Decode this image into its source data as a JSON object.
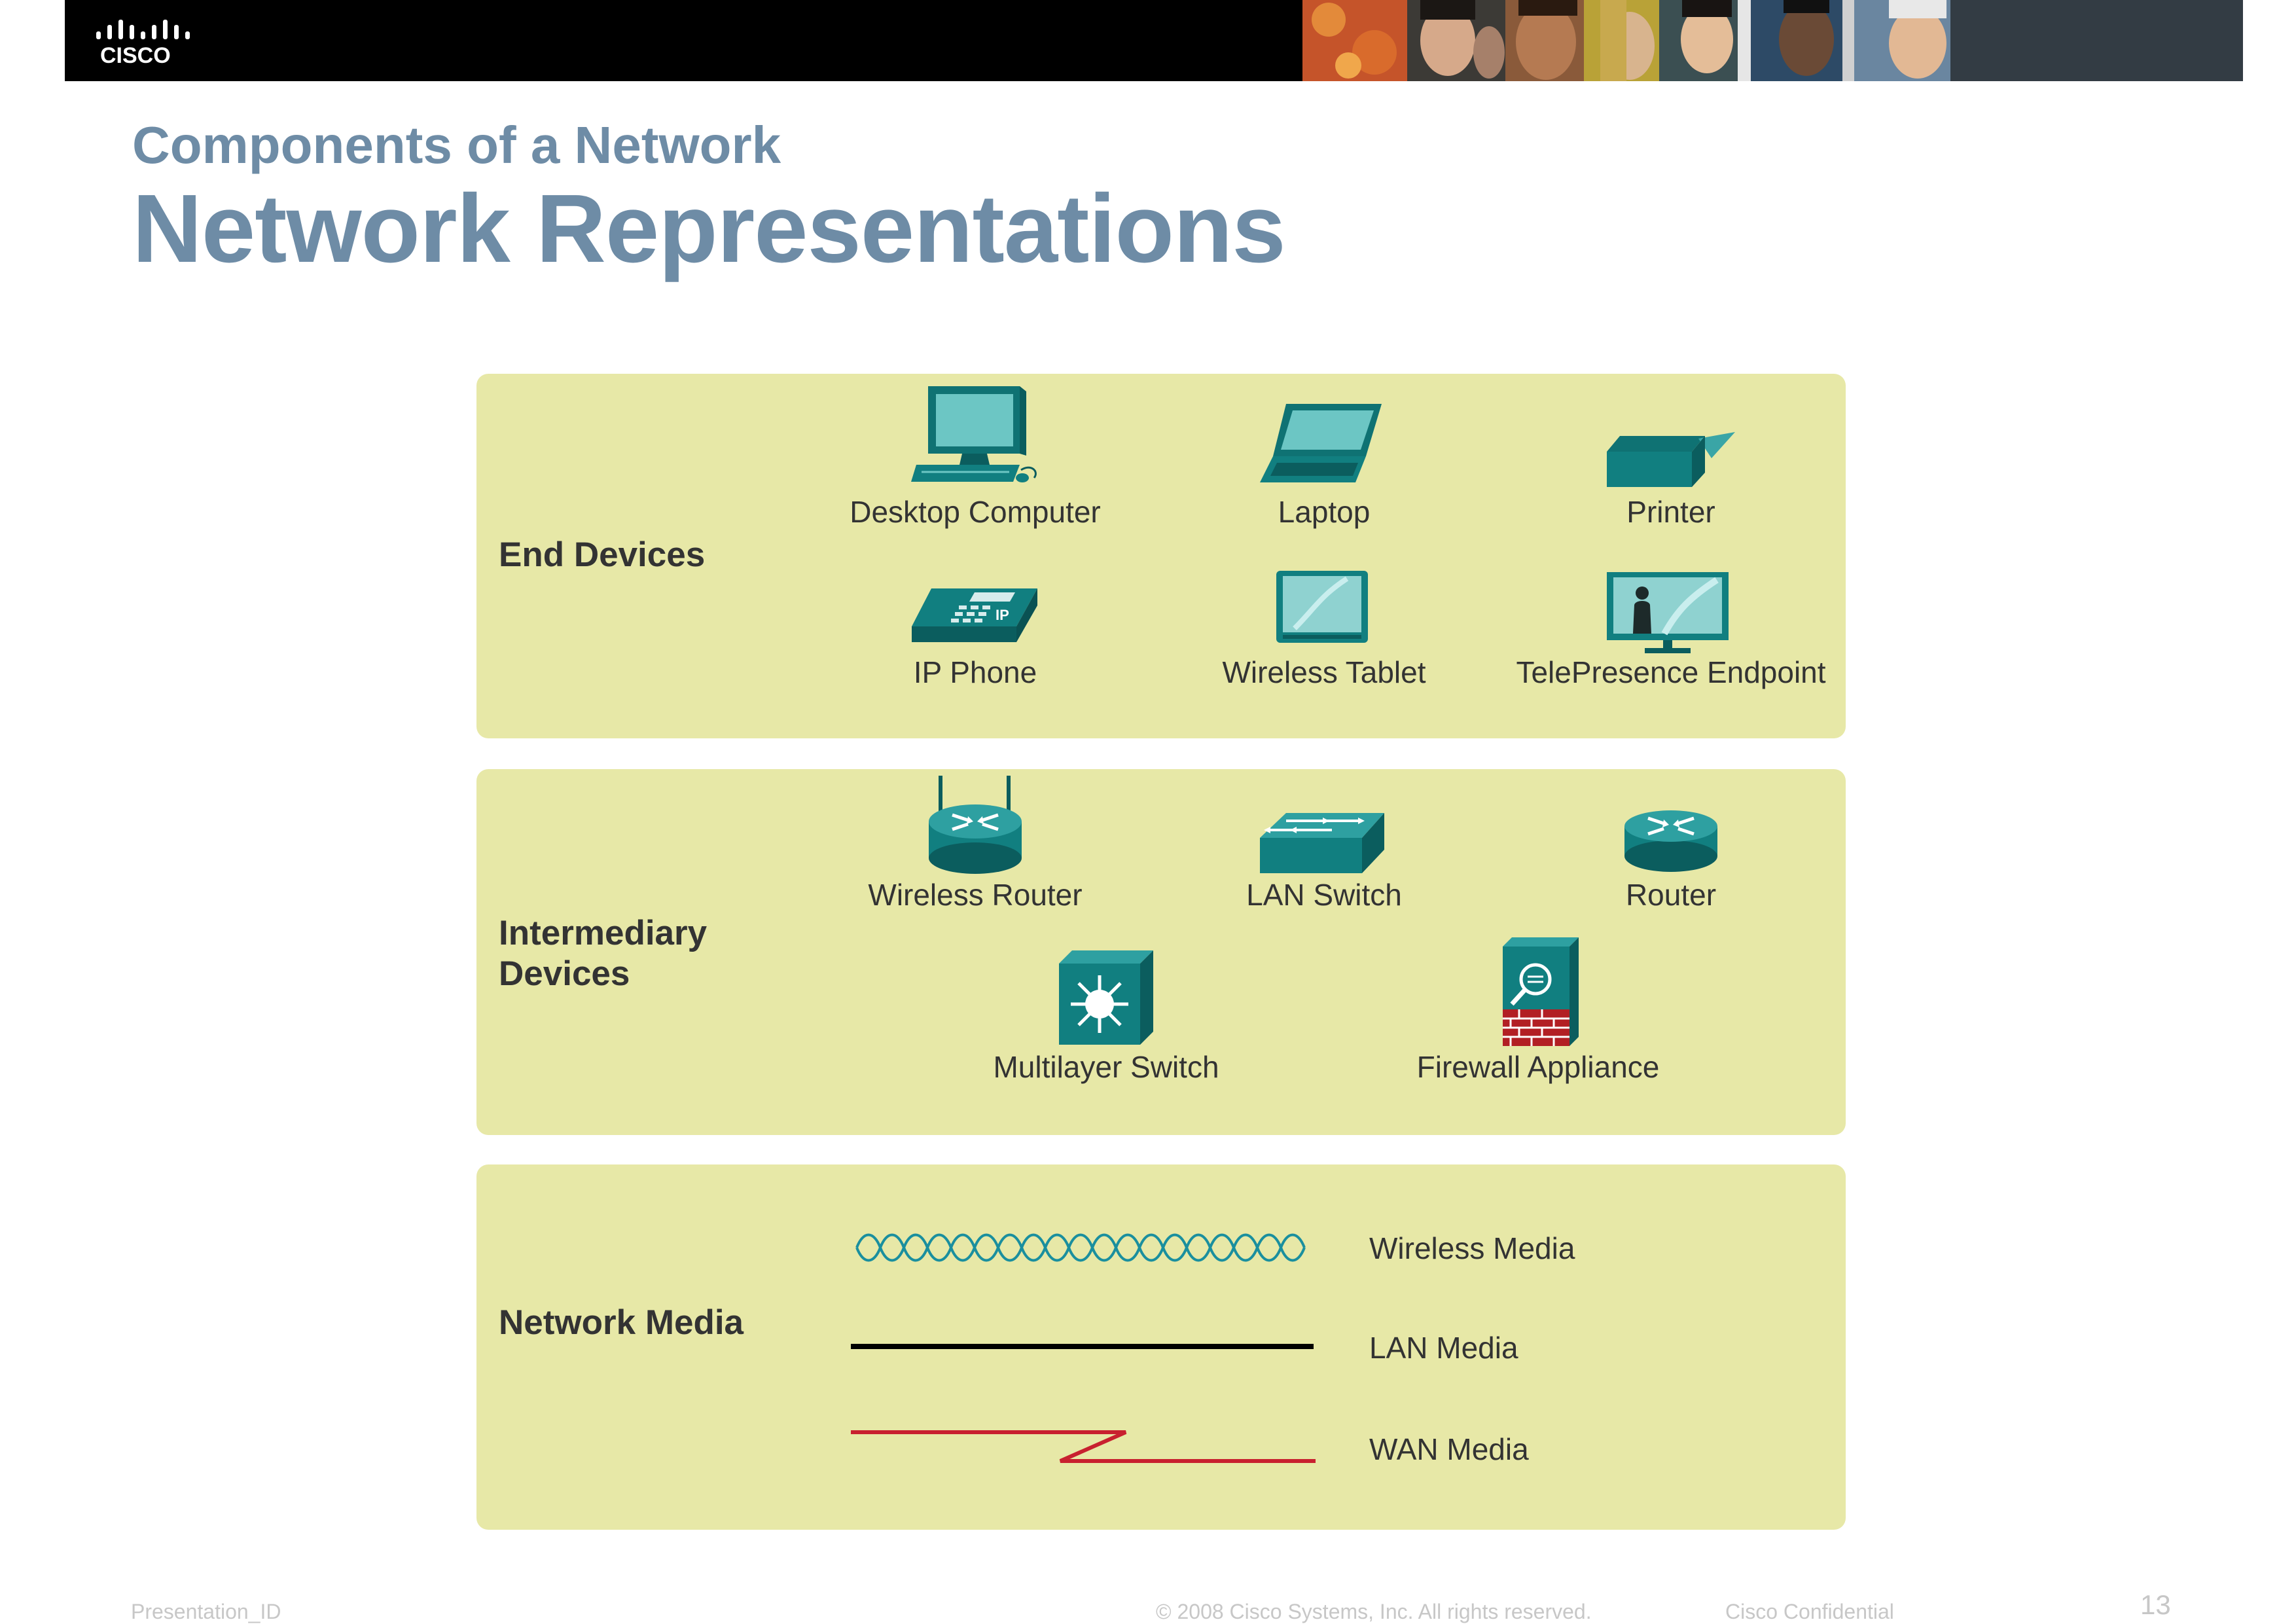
{
  "header": {
    "logo_text": "CISCO"
  },
  "slide": {
    "subtitle": "Components of a Network",
    "title": "Network Representations"
  },
  "end_devices": {
    "heading": "End Devices",
    "items": [
      {
        "label": "Desktop Computer",
        "icon": "desktop-computer-icon"
      },
      {
        "label": "Laptop",
        "icon": "laptop-icon"
      },
      {
        "label": "Printer",
        "icon": "printer-icon"
      },
      {
        "label": "IP Phone",
        "icon": "ip-phone-icon",
        "icon_text": "IP"
      },
      {
        "label": "Wireless Tablet",
        "icon": "wireless-tablet-icon"
      },
      {
        "label": "TelePresence Endpoint",
        "icon": "telepresence-endpoint-icon"
      }
    ]
  },
  "intermediary_devices": {
    "heading_line1": "Intermediary",
    "heading_line2": "Devices",
    "items": [
      {
        "label": "Wireless Router",
        "icon": "wireless-router-icon"
      },
      {
        "label": "LAN Switch",
        "icon": "lan-switch-icon"
      },
      {
        "label": "Router",
        "icon": "router-icon"
      },
      {
        "label": "Multilayer Switch",
        "icon": "multilayer-switch-icon"
      },
      {
        "label": "Firewall Appliance",
        "icon": "firewall-appliance-icon"
      }
    ]
  },
  "network_media": {
    "heading": "Network Media",
    "items": [
      {
        "label": "Wireless Media",
        "icon": "wireless-media-line",
        "color": "#1a8f9e"
      },
      {
        "label": "LAN Media",
        "icon": "lan-media-line",
        "color": "#000000"
      },
      {
        "label": "WAN Media",
        "icon": "wan-media-line",
        "color": "#c8202f"
      }
    ]
  },
  "colors": {
    "title": "#6e8ca6",
    "panel": "#e7e8a7",
    "device_teal": "#117f80",
    "footer": "#c7c7c7"
  },
  "footer": {
    "presentation_id": "Presentation_ID",
    "copyright": "© 2008 Cisco Systems, Inc. All rights reserved.",
    "confidential": "Cisco Confidential",
    "page_number": "13"
  }
}
